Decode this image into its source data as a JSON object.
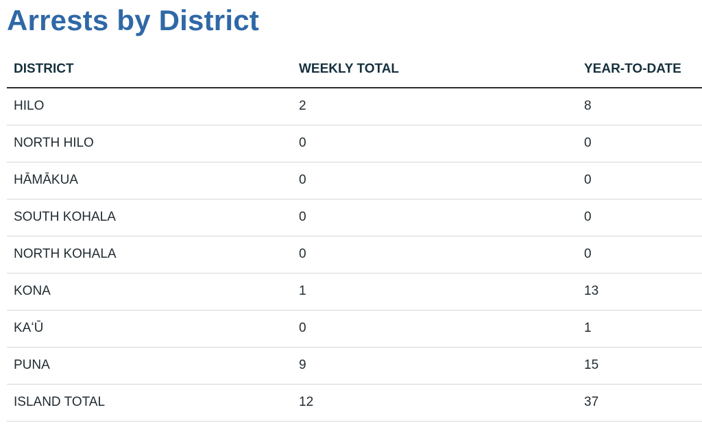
{
  "title": "Arrests by District",
  "table": {
    "headers": [
      "DISTRICT",
      "WEEKLY TOTAL",
      "YEAR-TO-DATE"
    ],
    "rows": [
      [
        "HILO",
        "2",
        "8"
      ],
      [
        "NORTH HILO",
        "0",
        "0"
      ],
      [
        "HĀMĀKUA",
        "0",
        "0"
      ],
      [
        "SOUTH KOHALA",
        "0",
        "0"
      ],
      [
        "NORTH KOHALA",
        "0",
        "0"
      ],
      [
        "KONA",
        "1",
        "13"
      ],
      [
        "KAʻŪ",
        "0",
        "1"
      ],
      [
        "PUNA",
        "9",
        "15"
      ],
      [
        "ISLAND TOTAL",
        "12",
        "37"
      ]
    ]
  }
}
